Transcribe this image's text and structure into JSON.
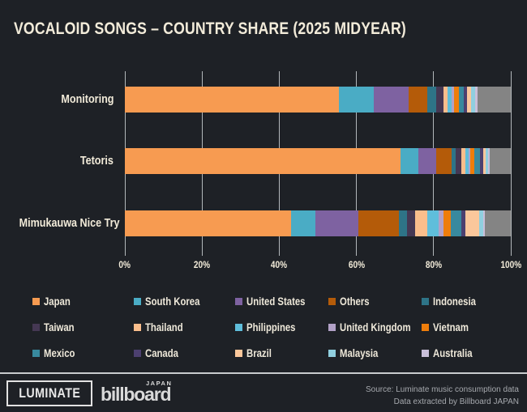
{
  "title": "VOCALOID SONGS – COUNTRY SHARE (2025 MIDYEAR)",
  "colors": {
    "background": "#1E2126",
    "cream_text": "#F2EBD9",
    "gridline": "#CDD1D5",
    "source_text": "#A6A9AE",
    "logo": "#E2E2E2"
  },
  "chart_data": {
    "type": "bar",
    "orientation": "horizontal-stacked",
    "title": "VOCALOID SONGS – COUNTRY SHARE (2025 MIDYEAR)",
    "categories": [
      "Monitoring",
      "Tetoris",
      "Mimukauwa Nice Try"
    ],
    "x_ticks": [
      "0%",
      "20%",
      "40%",
      "60%",
      "80%",
      "100%"
    ],
    "xlim": [
      0,
      100
    ],
    "grid": true,
    "legend_position": "bottom",
    "series": [
      {
        "name": "Japan",
        "color": "#F79B51",
        "in_legend": true,
        "values": [
          55.5,
          71.5,
          43.0
        ]
      },
      {
        "name": "South Korea",
        "color": "#4AACC5",
        "in_legend": true,
        "values": [
          9.0,
          4.6,
          6.3
        ]
      },
      {
        "name": "United States",
        "color": "#7E62A1",
        "in_legend": true,
        "values": [
          9.0,
          4.5,
          11.2
        ]
      },
      {
        "name": "Others",
        "color": "#B45B09",
        "in_legend": true,
        "values": [
          4.8,
          4.0,
          10.5
        ]
      },
      {
        "name": "Indonesia",
        "color": "#2E7487",
        "in_legend": true,
        "values": [
          2.3,
          1.2,
          2.1
        ]
      },
      {
        "name": "Taiwan",
        "color": "#453853",
        "in_legend": true,
        "values": [
          2.0,
          1.4,
          2.1
        ]
      },
      {
        "name": "Thailand",
        "color": "#FABE8C",
        "in_legend": true,
        "values": [
          1.1,
          1.0,
          3.2
        ]
      },
      {
        "name": "Philippines",
        "color": "#5FBEDB",
        "in_legend": true,
        "values": [
          0.9,
          0.8,
          2.9
        ]
      },
      {
        "name": "United Kingdom",
        "color": "#B2A1C7",
        "in_legend": true,
        "values": [
          0.8,
          0.6,
          1.3
        ]
      },
      {
        "name": "Vietnam",
        "color": "#EE7D0B",
        "in_legend": true,
        "values": [
          1.1,
          1.0,
          1.9
        ]
      },
      {
        "name": "Mexico",
        "color": "#38899E",
        "in_legend": true,
        "values": [
          1.3,
          1.5,
          2.7
        ]
      },
      {
        "name": "Canada",
        "color": "#4C4070",
        "in_legend": true,
        "values": [
          0.9,
          0.8,
          1.1
        ]
      },
      {
        "name": "Brazil",
        "color": "#FBC79B",
        "in_legend": true,
        "values": [
          1.1,
          0.7,
          3.6
        ]
      },
      {
        "name": "Malaysia",
        "color": "#90CFDF",
        "in_legend": true,
        "values": [
          0.9,
          0.5,
          0.9
        ]
      },
      {
        "name": "Australia",
        "color": "#C9BFD9",
        "in_legend": true,
        "values": [
          0.8,
          0.4,
          0.6
        ]
      },
      {
        "name": "",
        "color": "#848484",
        "in_legend": false,
        "values": [
          8.5,
          5.5,
          6.6
        ]
      }
    ]
  },
  "footer": {
    "luminate_logo": "LUMINATE",
    "billboard_logo": "billboard",
    "billboard_sup": "JAPAN",
    "source_line1": "Source: Luminate music consumption data",
    "source_line2": "Data extracted by Billboard JAPAN"
  }
}
